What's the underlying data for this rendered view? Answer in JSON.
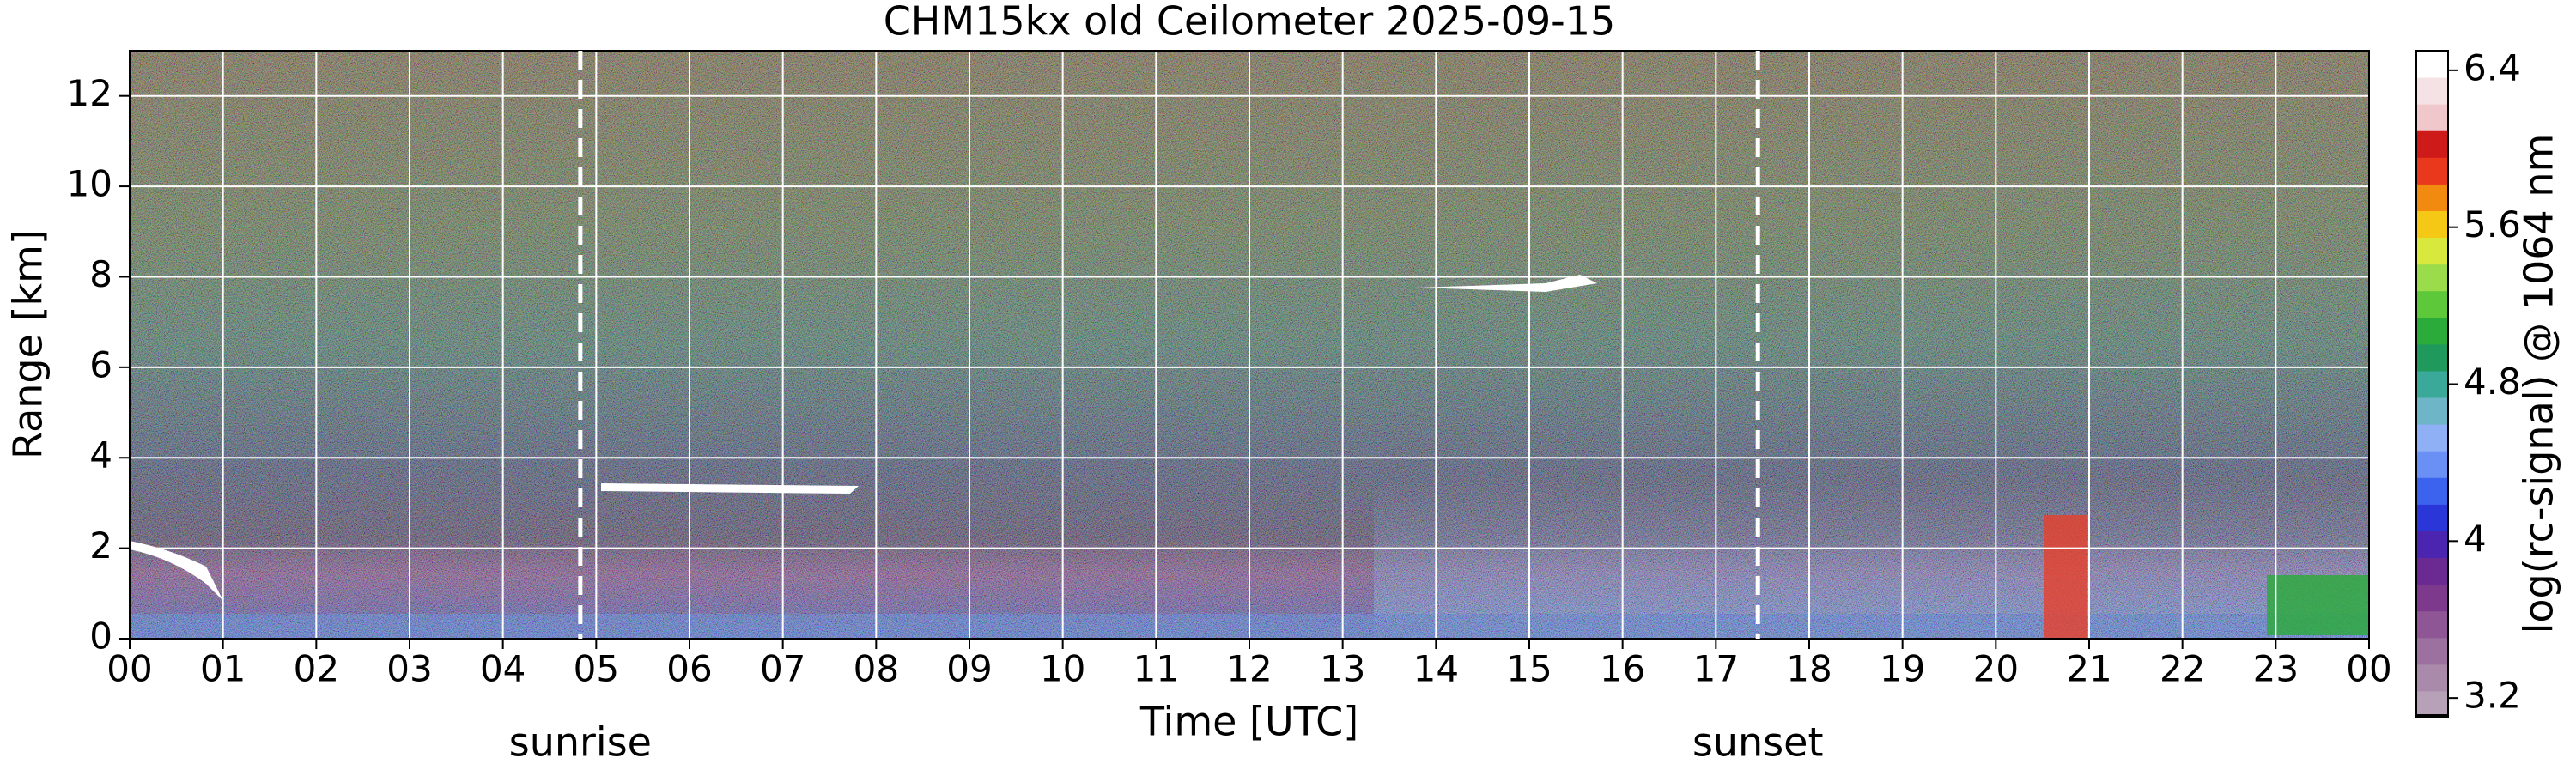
{
  "chart_data": {
    "type": "heatmap",
    "title": "CHM15kx old Ceilometer 2025-09-15",
    "x_label": "Time [UTC]",
    "y_label": "Range [km]",
    "xlim": [
      0,
      24
    ],
    "xticks": [
      {
        "value": 0,
        "label": "00"
      },
      {
        "value": 1,
        "label": "01"
      },
      {
        "value": 2,
        "label": "02"
      },
      {
        "value": 3,
        "label": "03"
      },
      {
        "value": 4,
        "label": "04"
      },
      {
        "value": 5,
        "label": "05"
      },
      {
        "value": 6,
        "label": "06"
      },
      {
        "value": 7,
        "label": "07"
      },
      {
        "value": 8,
        "label": "08"
      },
      {
        "value": 9,
        "label": "09"
      },
      {
        "value": 10,
        "label": "10"
      },
      {
        "value": 11,
        "label": "11"
      },
      {
        "value": 12,
        "label": "12"
      },
      {
        "value": 13,
        "label": "13"
      },
      {
        "value": 14,
        "label": "14"
      },
      {
        "value": 15,
        "label": "15"
      },
      {
        "value": 16,
        "label": "16"
      },
      {
        "value": 17,
        "label": "17"
      },
      {
        "value": 18,
        "label": "18"
      },
      {
        "value": 19,
        "label": "19"
      },
      {
        "value": 20,
        "label": "20"
      },
      {
        "value": 21,
        "label": "21"
      },
      {
        "value": 22,
        "label": "22"
      },
      {
        "value": 23,
        "label": "23"
      },
      {
        "value": 24,
        "label": "00"
      }
    ],
    "ylim": [
      0,
      13
    ],
    "yticks": [
      0,
      2,
      4,
      6,
      8,
      10,
      12
    ],
    "grid": true,
    "grid_color": "#ffffff",
    "annotations": [
      {
        "text": "sunrise",
        "x": 4.83
      },
      {
        "text": "sunset",
        "x": 17.45
      }
    ],
    "colorbar": {
      "label": "log(rc-signal) @ 1064 nm",
      "lim": [
        3.1,
        6.5
      ],
      "ticks": [
        3.2,
        4,
        4.8,
        5.6,
        6.4
      ],
      "colors": [
        "#b7a1b8",
        "#a98aab",
        "#9c719f",
        "#8e5695",
        "#7d3a8c",
        "#6b2a92",
        "#4b24b0",
        "#2a36d8",
        "#3c63ee",
        "#6a8ff5",
        "#8fb0f5",
        "#6fb5c8",
        "#3aa99a",
        "#1f9a5c",
        "#2aab3a",
        "#5cc83a",
        "#9bdc4a",
        "#d8e83c",
        "#f5c816",
        "#f28a10",
        "#e9381c",
        "#cf1a1a",
        "#f0c8cc",
        "#f5e2e4",
        "#ffffff"
      ]
    }
  }
}
